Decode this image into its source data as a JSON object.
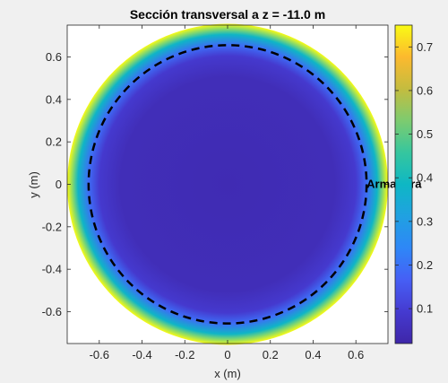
{
  "chart_data": {
    "type": "heatmap",
    "title": "Sección transversal a z = -11.0 m",
    "xlabel": "x (m)",
    "ylabel": "y (m)",
    "xlim": [
      -0.75,
      0.75
    ],
    "ylim": [
      -0.75,
      0.75
    ],
    "xticks": [
      -0.6,
      -0.4,
      -0.2,
      0,
      0.2,
      0.4,
      0.6
    ],
    "xtick_labels": [
      "-0.6",
      "-0.4",
      "-0.2",
      "0",
      "0.2",
      "0.4",
      "0.6"
    ],
    "yticks": [
      0.6,
      0.4,
      0.2,
      0,
      -0.2,
      -0.4,
      -0.6
    ],
    "ytick_labels": [
      "0.6",
      "0.4",
      "0.2",
      "0",
      "-0.2",
      "-0.4",
      "-0.6"
    ],
    "colormap": "parula",
    "clim": [
      0.02,
      0.75
    ],
    "colorbar_ticks": [
      0.7,
      0.6,
      0.5,
      0.4,
      0.3,
      0.2,
      0.1
    ],
    "colorbar_tick_labels": [
      "0.7",
      "0.6",
      "0.5",
      "0.4",
      "0.3",
      "0.2",
      "0.1"
    ],
    "section_radius": 0.75,
    "profile_stops": [
      {
        "r": 0.0,
        "value": 0.04
      },
      {
        "r": 0.5,
        "value": 0.05
      },
      {
        "r": 0.6,
        "value": 0.09
      },
      {
        "r": 0.65,
        "value": 0.19
      },
      {
        "r": 0.7,
        "value": 0.38
      },
      {
        "r": 0.75,
        "value": 0.75
      }
    ],
    "reinforcement_circle": {
      "radius": 0.65,
      "style": "dashed",
      "color": "#000000"
    },
    "annotation": {
      "text": "Armadura",
      "x": 0.65,
      "y": 0
    }
  },
  "colors": {
    "figure_background": "#f0f0f0",
    "axes_background": "#ffffff",
    "axes_line": "#262626"
  }
}
